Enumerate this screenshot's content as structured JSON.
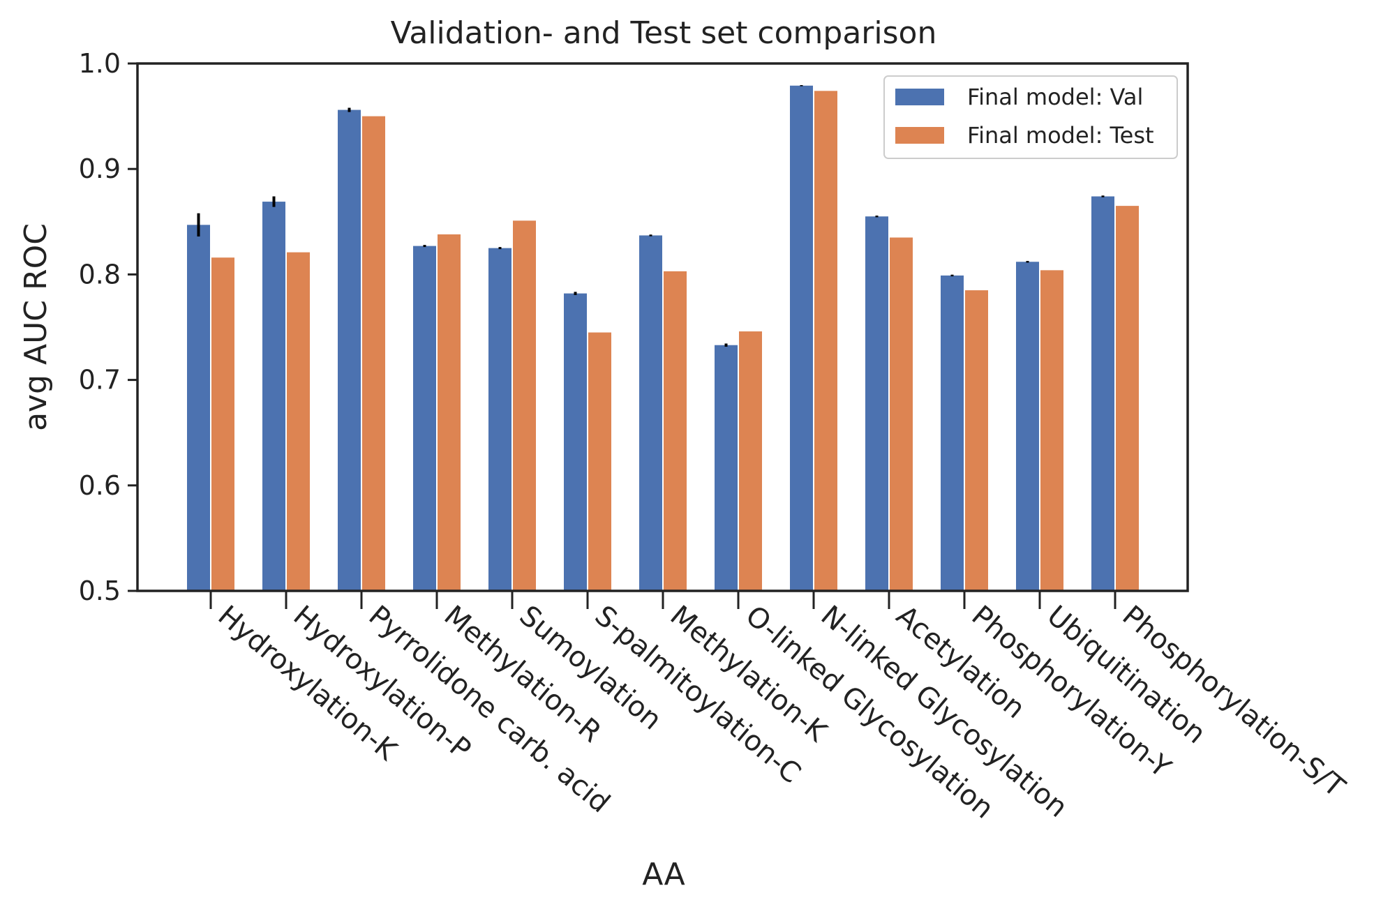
{
  "chart_data": {
    "type": "bar",
    "title": "Validation- and Test set comparison",
    "xlabel": "AA",
    "ylabel": "avg AUC ROC",
    "ylim": [
      0.5,
      1.0
    ],
    "yticks": [
      "0.5",
      "0.6",
      "0.7",
      "0.8",
      "0.9",
      "1.0"
    ],
    "grid": false,
    "legend_position": "top-right",
    "categories": [
      "Hydroxylation-K",
      "Hydroxylation-P",
      "Pyrrolidone carb. acid",
      "Methylation-R",
      "Sumoylation",
      "S-palmitoylation-C",
      "Methylation-K",
      "O-linked Glycosylation",
      "N-linked Glycosylation",
      "Acetylation",
      "Phosphorylation-Y",
      "Ubiquitination",
      "Phosphorylation-S/T"
    ],
    "series": [
      {
        "name": "Final model: Val",
        "color": "#4c72b0",
        "values": [
          0.847,
          0.869,
          0.956,
          0.827,
          0.825,
          0.782,
          0.837,
          0.733,
          0.979,
          0.855,
          0.799,
          0.812,
          0.874
        ],
        "errors": [
          0.011,
          0.005,
          0.002,
          0.001,
          0.001,
          0.0015,
          0.0008,
          0.0015,
          0.0005,
          0.0008,
          0.0008,
          0.0008,
          0.0008
        ]
      },
      {
        "name": "Final model: Test",
        "color": "#dd8452",
        "values": [
          0.816,
          0.821,
          0.95,
          0.838,
          0.851,
          0.745,
          0.803,
          0.746,
          0.974,
          0.835,
          0.785,
          0.804,
          0.865
        ]
      }
    ]
  }
}
